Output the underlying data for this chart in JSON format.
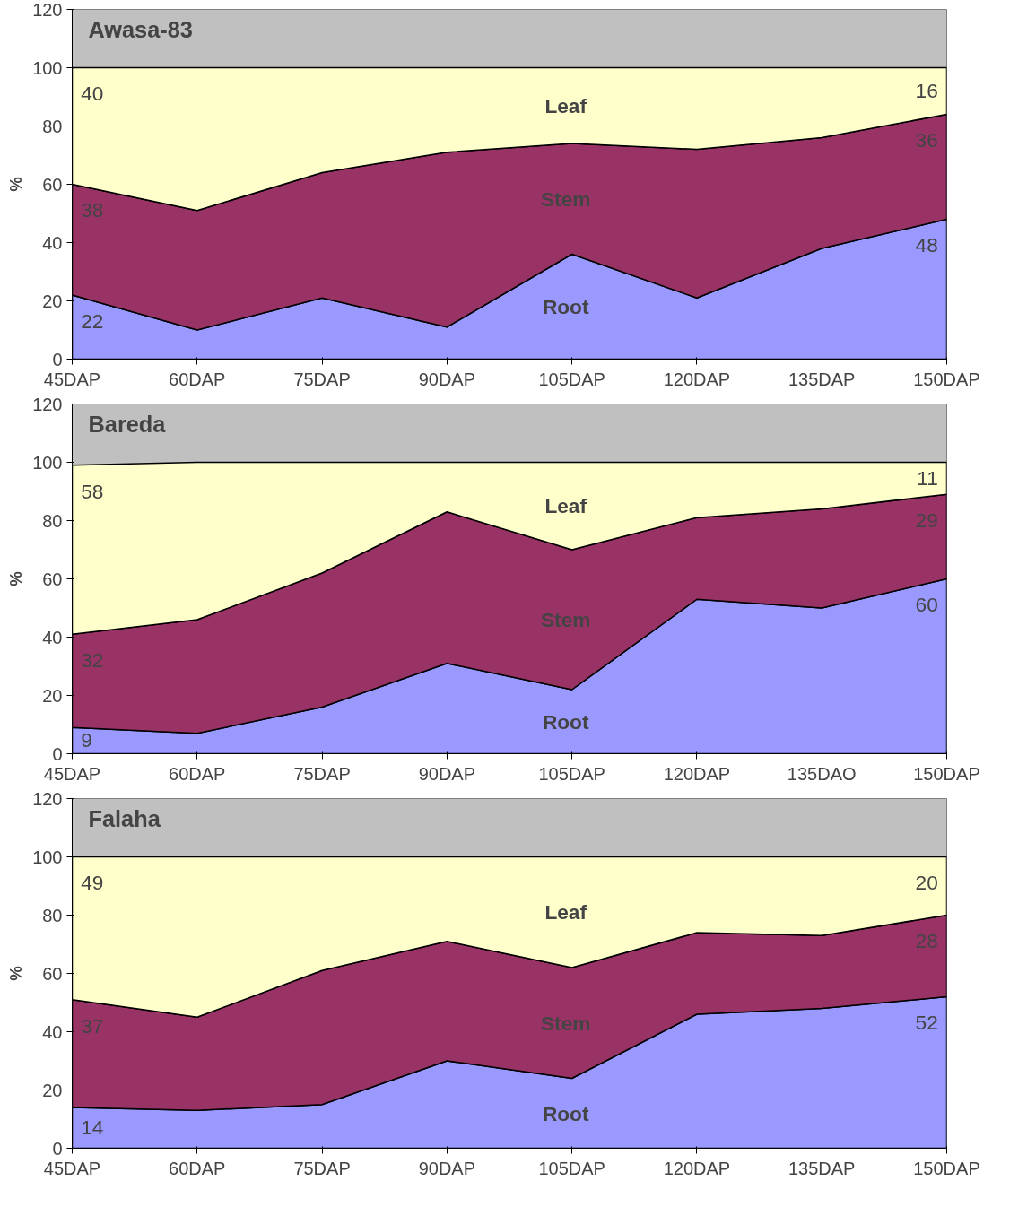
{
  "chart_data": [
    {
      "type": "area",
      "stacked": true,
      "title": "Awasa-83",
      "ylabel": "%",
      "categories": [
        "45DAP",
        "60DAP",
        "75DAP",
        "90DAP",
        "105DAP",
        "120DAP",
        "135DAP",
        "150DAP"
      ],
      "ylim": [
        0,
        120
      ],
      "yticks": [
        0,
        20,
        40,
        60,
        80,
        100,
        120
      ],
      "grid": false,
      "legend": false,
      "series": [
        {
          "name": "Root",
          "color": "#9999ff",
          "values": [
            22,
            10,
            21,
            11,
            36,
            21,
            38,
            48
          ],
          "value_labels": [
            "22",
            null,
            null,
            null,
            null,
            null,
            null,
            "48"
          ]
        },
        {
          "name": "Stem",
          "color": "#993366",
          "values": [
            38,
            41,
            43,
            60,
            38,
            51,
            38,
            36
          ],
          "value_labels": [
            "38",
            null,
            null,
            null,
            null,
            null,
            null,
            "36"
          ]
        },
        {
          "name": "Leaf",
          "color": "#ffffcc",
          "values": [
            40,
            49,
            36,
            29,
            26,
            28,
            24,
            16
          ],
          "value_labels": [
            "40",
            null,
            null,
            null,
            null,
            null,
            null,
            "16"
          ]
        }
      ]
    },
    {
      "type": "area",
      "stacked": true,
      "title": "Bareda",
      "ylabel": "%",
      "categories": [
        "45DAP",
        "60DAP",
        "75DAP",
        "90DAP",
        "105DAP",
        "120DAP",
        "135DAO",
        "150DAP"
      ],
      "ylim": [
        0,
        120
      ],
      "yticks": [
        0,
        20,
        40,
        60,
        80,
        100,
        120
      ],
      "grid": false,
      "legend": false,
      "series": [
        {
          "name": "Root",
          "color": "#9999ff",
          "values": [
            9,
            7,
            16,
            31,
            22,
            53,
            50,
            60
          ],
          "value_labels": [
            "9",
            null,
            null,
            null,
            null,
            null,
            null,
            "60"
          ]
        },
        {
          "name": "Stem",
          "color": "#993366",
          "values": [
            32,
            39,
            46,
            52,
            48,
            28,
            34,
            29
          ],
          "value_labels": [
            "32",
            null,
            null,
            null,
            null,
            null,
            null,
            "29"
          ]
        },
        {
          "name": "Leaf",
          "color": "#ffffcc",
          "values": [
            58,
            54,
            38,
            17,
            30,
            19,
            16,
            11
          ],
          "value_labels": [
            "58",
            null,
            null,
            null,
            null,
            null,
            null,
            "11"
          ]
        }
      ]
    },
    {
      "type": "area",
      "stacked": true,
      "title": "Falaha",
      "ylabel": "%",
      "categories": [
        "45DAP",
        "60DAP",
        "75DAP",
        "90DAP",
        "105DAP",
        "120DAP",
        "135DAP",
        "150DAP"
      ],
      "ylim": [
        0,
        120
      ],
      "yticks": [
        0,
        20,
        40,
        60,
        80,
        100,
        120
      ],
      "grid": false,
      "legend": false,
      "series": [
        {
          "name": "Root",
          "color": "#9999ff",
          "values": [
            14,
            13,
            15,
            30,
            24,
            46,
            48,
            52
          ],
          "value_labels": [
            "14",
            null,
            null,
            null,
            null,
            null,
            null,
            "52"
          ]
        },
        {
          "name": "Stem",
          "color": "#993366",
          "values": [
            37,
            32,
            46,
            41,
            38,
            28,
            25,
            28
          ],
          "value_labels": [
            "37",
            null,
            null,
            null,
            null,
            null,
            null,
            "28"
          ]
        },
        {
          "name": "Leaf",
          "color": "#ffffcc",
          "values": [
            49,
            55,
            39,
            29,
            38,
            26,
            27,
            20
          ],
          "value_labels": [
            "49",
            null,
            null,
            null,
            null,
            null,
            null,
            "20"
          ]
        }
      ]
    }
  ]
}
